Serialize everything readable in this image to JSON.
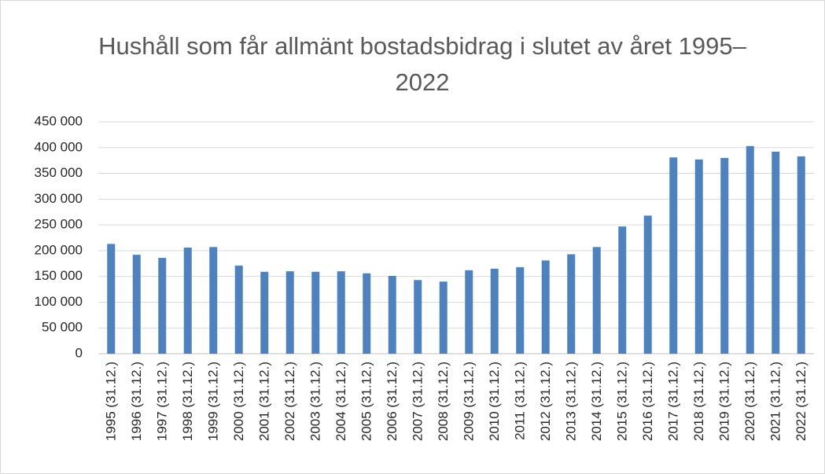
{
  "chart_data": {
    "type": "bar",
    "title": "Hushåll som får allmänt bostadsbidrag i slutet av året 1995–2022",
    "categories": [
      "1995 (31.12.)",
      "1996 (31.12.)",
      "1997 (31.12.)",
      "1998 (31.12.)",
      "1999 (31.12.)",
      "2000 (31.12.)",
      "2001 (31.12.)",
      "2002 (31.12.)",
      "2003 (31.12.)",
      "2004 (31.12.)",
      "2005 (31.12.)",
      "2006 (31.12.)",
      "2007 (31.12.)",
      "2008 (31.12.)",
      "2009 (31.12.)",
      "2010 (31.12.)",
      "2011 (31.12.)",
      "2012 (31.12.)",
      "2013 (31.12.)",
      "2014 (31.12.)",
      "2015 (31.12.)",
      "2016 (31.12.)",
      "2017 (31.12.)",
      "2018 (31.12.)",
      "2019 (31.12.)",
      "2020 (31.12.)",
      "2021 (31.12.)",
      "2022 (31.12.)"
    ],
    "values": [
      213000,
      192000,
      186000,
      206000,
      207000,
      171000,
      159000,
      160000,
      159000,
      160000,
      156000,
      151000,
      143000,
      140000,
      162000,
      165000,
      168000,
      181000,
      193000,
      207000,
      247000,
      268000,
      381000,
      377000,
      380000,
      403000,
      392000,
      383000
    ],
    "color": "#4f81bd",
    "ylim": [
      0,
      450000
    ],
    "yticks": [
      0,
      {
        "value": 50000,
        "label": "50 000"
      },
      {
        "value": 100000,
        "label": "100 000"
      },
      {
        "value": 150000,
        "label": "150 000"
      },
      {
        "value": 200000,
        "label": "200 000"
      },
      {
        "value": 250000,
        "label": "250 000"
      },
      {
        "value": 300000,
        "label": "300 000"
      },
      {
        "value": 350000,
        "label": "350 000"
      },
      {
        "value": 400000,
        "label": "400 000"
      },
      {
        "value": 450000,
        "label": "450 000"
      }
    ],
    "grid": true
  }
}
